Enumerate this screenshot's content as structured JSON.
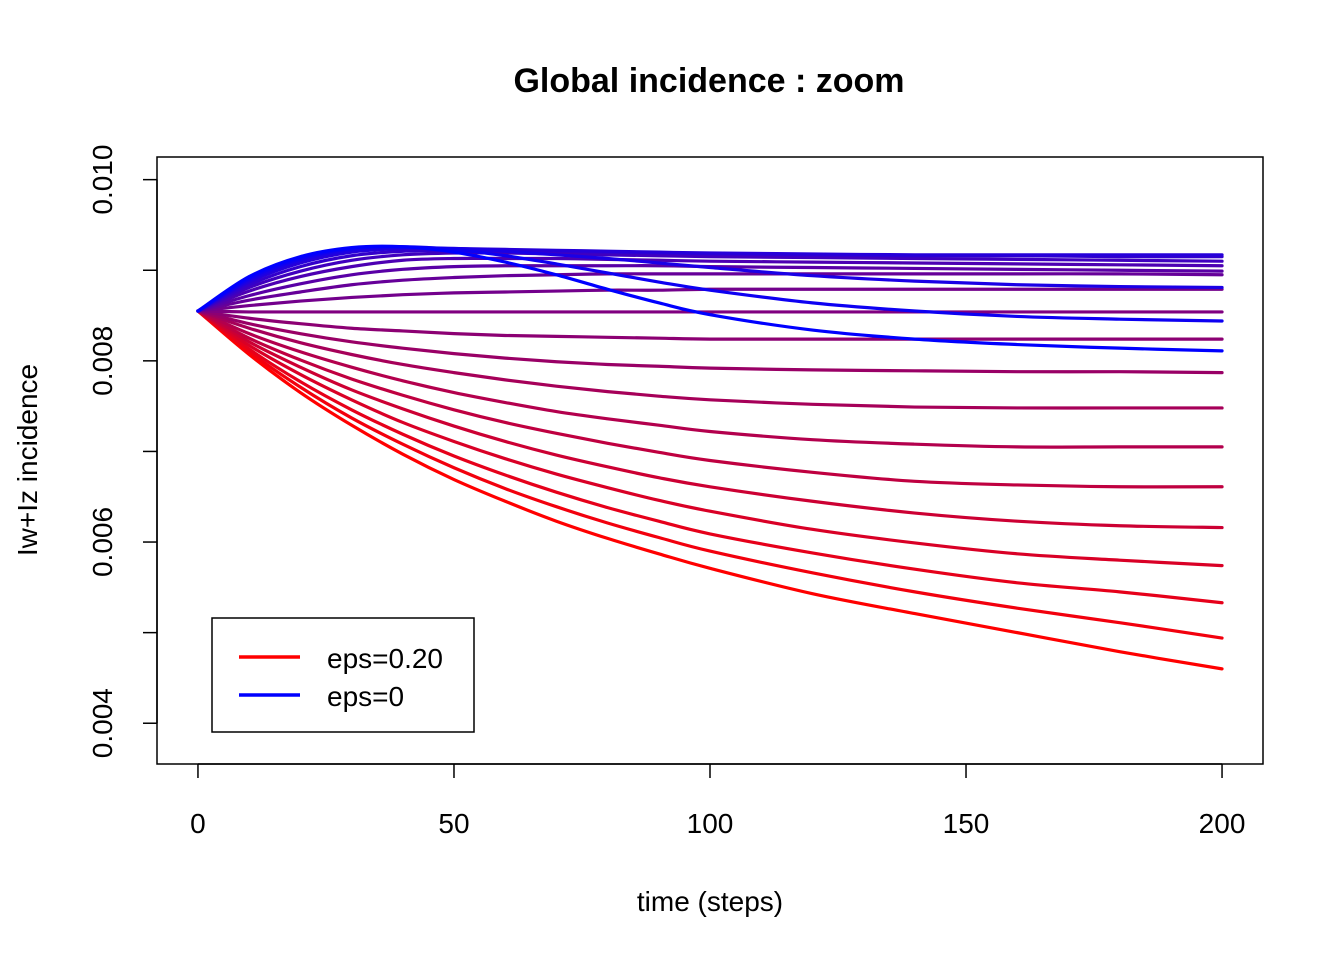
{
  "chart_data": {
    "type": "line",
    "title": "Global incidence : zoom",
    "xlabel": "time (steps)",
    "ylabel": "Iw+Iz incidence",
    "xlim": [
      -8,
      208
    ],
    "ylim": [
      0.00355,
      0.01025
    ],
    "x_ticks": [
      0,
      50,
      100,
      150,
      200
    ],
    "x_tick_labels": [
      "0",
      "50",
      "100",
      "150",
      "200"
    ],
    "y_ticks": [
      0.004,
      0.006,
      0.008,
      0.01
    ],
    "y_tick_labels": [
      "0.004",
      "0.006",
      "0.008",
      "0.010"
    ],
    "grid": false,
    "legend_position": "bottom-left",
    "legend": [
      {
        "label": "eps=0.20",
        "color": "#ff0000"
      },
      {
        "label": "eps=0",
        "color": "#0000ff"
      }
    ],
    "color_gradient": {
      "from": "#ff0000",
      "to": "#0000ff"
    },
    "x": [
      0,
      10,
      20,
      30,
      40,
      50,
      60,
      70,
      80,
      90,
      100,
      120,
      140,
      160,
      180,
      200
    ],
    "series": [
      {
        "eps": 0.2,
        "values": [
          0.00855,
          0.00807,
          0.00765,
          0.00729,
          0.00697,
          0.00669,
          0.00645,
          0.00623,
          0.00604,
          0.00587,
          0.00571,
          0.00543,
          0.00521,
          0.005,
          0.00479,
          0.0046
        ]
      },
      {
        "eps": 0.19,
        "values": [
          0.00855,
          0.0081,
          0.00771,
          0.00737,
          0.00708,
          0.00682,
          0.00659,
          0.00639,
          0.00621,
          0.00605,
          0.0059,
          0.00566,
          0.00545,
          0.00527,
          0.00511,
          0.00494
        ]
      },
      {
        "eps": 0.18,
        "values": [
          0.00855,
          0.00813,
          0.00777,
          0.00746,
          0.00719,
          0.00695,
          0.00674,
          0.00655,
          0.00638,
          0.00623,
          0.00609,
          0.00588,
          0.0057,
          0.00555,
          0.00545,
          0.00533
        ]
      },
      {
        "eps": 0.17,
        "values": [
          0.00855,
          0.00817,
          0.00785,
          0.00757,
          0.00732,
          0.00711,
          0.00692,
          0.00675,
          0.0066,
          0.00646,
          0.00634,
          0.00614,
          0.00599,
          0.00587,
          0.0058,
          0.00574
        ]
      },
      {
        "eps": 0.16,
        "values": [
          0.00855,
          0.00821,
          0.00793,
          0.00768,
          0.00747,
          0.00728,
          0.00711,
          0.00696,
          0.00683,
          0.00671,
          0.00661,
          0.00645,
          0.00632,
          0.00623,
          0.00618,
          0.00616
        ]
      },
      {
        "eps": 0.15,
        "values": [
          0.00855,
          0.00825,
          0.00801,
          0.0078,
          0.00762,
          0.00746,
          0.00732,
          0.0072,
          0.00709,
          0.00699,
          0.0069,
          0.00677,
          0.00667,
          0.00663,
          0.00661,
          0.00661
        ]
      },
      {
        "eps": 0.14,
        "values": [
          0.00855,
          0.0083,
          0.0081,
          0.00793,
          0.00778,
          0.00765,
          0.00754,
          0.00744,
          0.00736,
          0.00729,
          0.00722,
          0.00713,
          0.00708,
          0.00705,
          0.00705,
          0.00705
        ]
      },
      {
        "eps": 0.13,
        "values": [
          0.00855,
          0.00836,
          0.0082,
          0.00807,
          0.00796,
          0.00787,
          0.00779,
          0.00772,
          0.00766,
          0.00761,
          0.00757,
          0.00752,
          0.00749,
          0.00748,
          0.00748,
          0.00748
        ]
      },
      {
        "eps": 0.12,
        "values": [
          0.00855,
          0.00841,
          0.0083,
          0.00821,
          0.00814,
          0.00808,
          0.00803,
          0.00799,
          0.00796,
          0.00794,
          0.00792,
          0.0079,
          0.00789,
          0.00788,
          0.00788,
          0.00787
        ]
      },
      {
        "eps": 0.11,
        "values": [
          0.00855,
          0.00847,
          0.00841,
          0.00836,
          0.00833,
          0.0083,
          0.00828,
          0.00827,
          0.00826,
          0.00825,
          0.00824,
          0.00824,
          0.00824,
          0.00824,
          0.00824,
          0.00824
        ]
      },
      {
        "eps": 0.1,
        "values": [
          0.00855,
          0.00854,
          0.00854,
          0.00854,
          0.00854,
          0.00854,
          0.00854,
          0.00854,
          0.00854,
          0.00854,
          0.00854,
          0.00854,
          0.00854,
          0.00854,
          0.00854,
          0.00854
        ]
      },
      {
        "eps": 0.09,
        "values": [
          0.00855,
          0.00861,
          0.00866,
          0.0087,
          0.00873,
          0.00875,
          0.00876,
          0.00877,
          0.00878,
          0.00878,
          0.00879,
          0.00879,
          0.00879,
          0.00879,
          0.00879,
          0.00879
        ]
      },
      {
        "eps": 0.08,
        "values": [
          0.00855,
          0.00867,
          0.00876,
          0.00884,
          0.00889,
          0.00892,
          0.00894,
          0.00895,
          0.00896,
          0.00896,
          0.00896,
          0.00896,
          0.00896,
          0.00896,
          0.00896,
          0.00895
        ]
      },
      {
        "eps": 0.07,
        "values": [
          0.00855,
          0.00872,
          0.00885,
          0.00895,
          0.00901,
          0.00904,
          0.00905,
          0.00905,
          0.00905,
          0.00905,
          0.00904,
          0.00903,
          0.00902,
          0.00901,
          0.009,
          0.00899
        ]
      },
      {
        "eps": 0.06,
        "values": [
          0.00855,
          0.00877,
          0.00893,
          0.00904,
          0.00911,
          0.00913,
          0.00913,
          0.00913,
          0.00912,
          0.00911,
          0.0091,
          0.00909,
          0.00908,
          0.00907,
          0.00906,
          0.00905
        ]
      },
      {
        "eps": 0.05,
        "values": [
          0.00855,
          0.00881,
          0.00899,
          0.00911,
          0.00917,
          0.00919,
          0.00919,
          0.00918,
          0.00917,
          0.00916,
          0.00915,
          0.00914,
          0.00913,
          0.00912,
          0.00911,
          0.0091
        ]
      },
      {
        "eps": 0.04,
        "values": [
          0.00855,
          0.00884,
          0.00904,
          0.00916,
          0.00921,
          0.00922,
          0.00922,
          0.00921,
          0.0092,
          0.00919,
          0.00918,
          0.00917,
          0.00916,
          0.00916,
          0.00915,
          0.00915
        ]
      },
      {
        "eps": 0.03,
        "values": [
          0.00855,
          0.00887,
          0.00908,
          0.0092,
          0.00924,
          0.00924,
          0.00923,
          0.00922,
          0.00921,
          0.0092,
          0.00919,
          0.00918,
          0.00917,
          0.00917,
          0.00917,
          0.00917
        ]
      },
      {
        "eps": 0.02,
        "values": [
          0.00855,
          0.00889,
          0.00911,
          0.00922,
          0.00925,
          0.00924,
          0.00921,
          0.00917,
          0.00913,
          0.00908,
          0.00903,
          0.00894,
          0.00888,
          0.00884,
          0.00882,
          0.00881
        ]
      },
      {
        "eps": 0.01,
        "values": [
          0.00855,
          0.00891,
          0.00913,
          0.00924,
          0.00926,
          0.00923,
          0.00916,
          0.00907,
          0.00897,
          0.00887,
          0.00878,
          0.00864,
          0.00855,
          0.00849,
          0.00846,
          0.00844
        ]
      },
      {
        "eps": 0.0,
        "values": [
          0.00855,
          0.00893,
          0.00915,
          0.00925,
          0.00926,
          0.0092,
          0.00909,
          0.00895,
          0.00879,
          0.00864,
          0.00851,
          0.00834,
          0.00824,
          0.00818,
          0.00814,
          0.00811
        ]
      }
    ]
  }
}
